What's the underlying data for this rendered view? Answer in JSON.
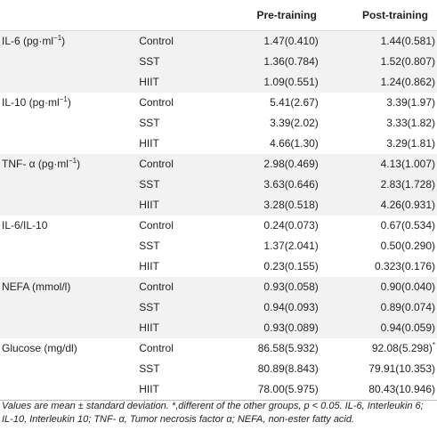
{
  "header": {
    "pre": "Pre-training",
    "post": "Post-training"
  },
  "rows": [
    {
      "param": "IL-6 (pg·ml",
      "param_sup": "−1",
      "param_tail": ")",
      "group": "Control",
      "pre": "1.47(0.410)",
      "post": "1.44(0.581)",
      "post_sup": ""
    },
    {
      "param": "",
      "param_sup": "",
      "param_tail": "",
      "group": "SST",
      "pre": "1.36(0.784)",
      "post": "1.52(0.807)",
      "post_sup": ""
    },
    {
      "param": "",
      "param_sup": "",
      "param_tail": "",
      "group": "HIIT",
      "pre": "1.09(0.551)",
      "post": "1.24(0.862)",
      "post_sup": ""
    },
    {
      "param": "IL-10 (pg·ml",
      "param_sup": "−1",
      "param_tail": ")",
      "group": "Control",
      "pre": "5.41(2.67)",
      "post": "3.39(1.97)",
      "post_sup": ""
    },
    {
      "param": "",
      "param_sup": "",
      "param_tail": "",
      "group": "SST",
      "pre": "3.39(2.02)",
      "post": "3.33(1.82)",
      "post_sup": ""
    },
    {
      "param": "",
      "param_sup": "",
      "param_tail": "",
      "group": "HIIT",
      "pre": "4.66(1.30)",
      "post": "3.29(1.81)",
      "post_sup": ""
    },
    {
      "param": "TNF- α (pg·ml",
      "param_sup": "−1",
      "param_tail": ")",
      "group": "Control",
      "pre": "2.98(0.469)",
      "post": "4.13(1.007)",
      "post_sup": ""
    },
    {
      "param": "",
      "param_sup": "",
      "param_tail": "",
      "group": "SST",
      "pre": "3.63(0.646)",
      "post": "2.83(1.728)",
      "post_sup": ""
    },
    {
      "param": "",
      "param_sup": "",
      "param_tail": "",
      "group": "HIIT",
      "pre": "3.28(0.518)",
      "post": "4.26(0.931)",
      "post_sup": ""
    },
    {
      "param": "IL-6/IL-10",
      "param_sup": "",
      "param_tail": "",
      "group": "Control",
      "pre": "0.24(0.073)",
      "post": "0.67(0.534)",
      "post_sup": ""
    },
    {
      "param": "",
      "param_sup": "",
      "param_tail": "",
      "group": "SST",
      "pre": "1.37(2.041)",
      "post": "0.50(0.290)",
      "post_sup": ""
    },
    {
      "param": "",
      "param_sup": "",
      "param_tail": "",
      "group": "HIIT",
      "pre": "0.23(0.155)",
      "post": "0.323(0.176)",
      "post_sup": ""
    },
    {
      "param": "NEFA (mmol/l)",
      "param_sup": "",
      "param_tail": "",
      "group": "Control",
      "pre": "0.93(0.058)",
      "post": "0.90(0.040)",
      "post_sup": ""
    },
    {
      "param": "",
      "param_sup": "",
      "param_tail": "",
      "group": "SST",
      "pre": "0.94(0.093)",
      "post": "0.89(0.074)",
      "post_sup": ""
    },
    {
      "param": "",
      "param_sup": "",
      "param_tail": "",
      "group": "HIIT",
      "pre": "0.93(0.089)",
      "post": "0.94(0.059)",
      "post_sup": ""
    },
    {
      "param": "Glucose (mg/dl)",
      "param_sup": "",
      "param_tail": "",
      "group": "Control",
      "pre": "86.58(5.932)",
      "post": "92.08(5.298)",
      "post_sup": "*"
    },
    {
      "param": "",
      "param_sup": "",
      "param_tail": "",
      "group": "SST",
      "pre": "80.89(8.843)",
      "post": "79.91(10.353)",
      "post_sup": ""
    },
    {
      "param": "",
      "param_sup": "",
      "param_tail": "",
      "group": "HIIT",
      "pre": "78.00(5.975)",
      "post": "80.43(10.946)",
      "post_sup": ""
    }
  ],
  "footnote": "Values are mean ± standard deviation. *,different of the other groups, p < 0.05. IL-6, Interleukin 6; IL-10, Interleukin 10; TNF- α, Tumor necrosis factor α; NEFA, non-ester fatty acid."
}
